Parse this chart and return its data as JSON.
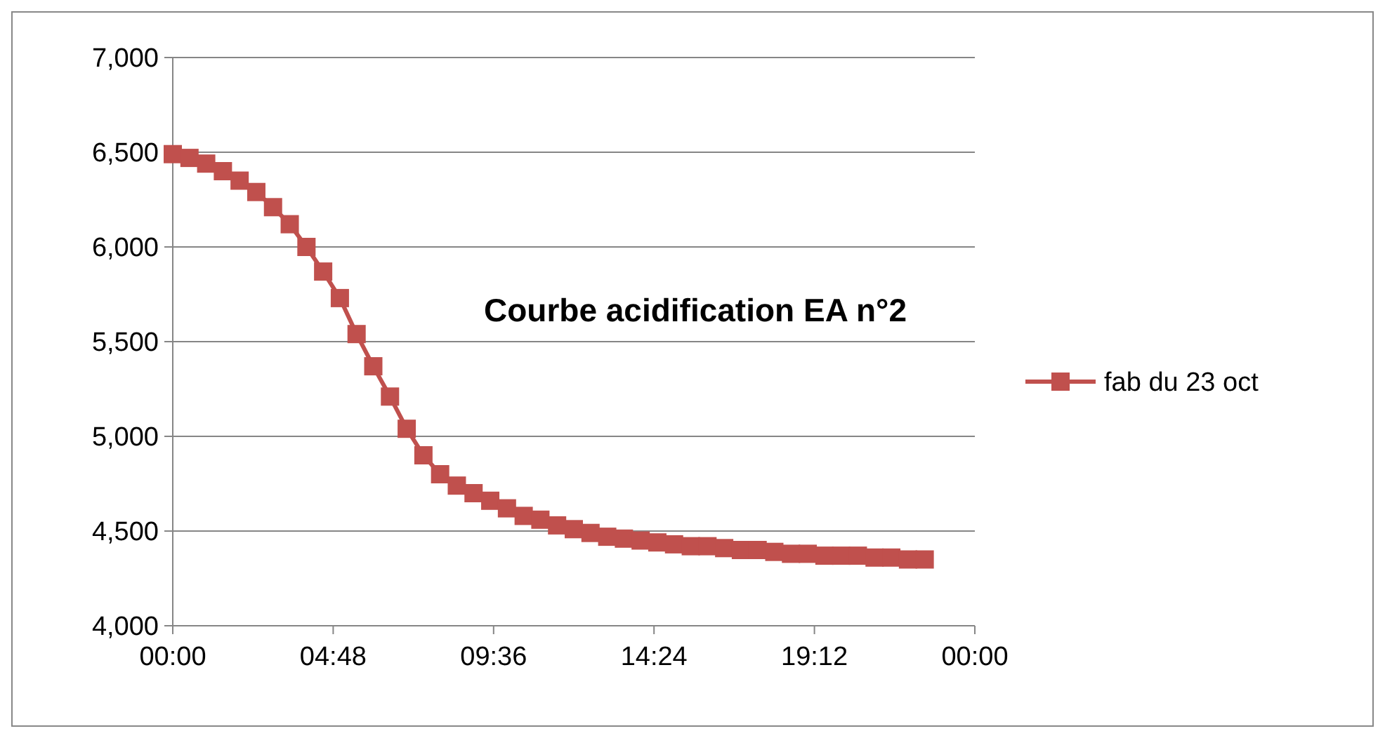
{
  "chart_data": {
    "type": "line",
    "title": "Courbe acidification EA n°2",
    "x": [
      0,
      0.5,
      1,
      1.5,
      2,
      2.5,
      3,
      3.5,
      4,
      4.5,
      5,
      5.5,
      6,
      6.5,
      7,
      7.5,
      8,
      8.5,
      9,
      9.5,
      10,
      10.5,
      11,
      11.5,
      12,
      12.5,
      13,
      13.5,
      14,
      14.5,
      15,
      15.5,
      16,
      16.5,
      17,
      17.5,
      18,
      18.5,
      19,
      19.5,
      20,
      20.5,
      21,
      21.5,
      22,
      22.5
    ],
    "series": [
      {
        "name": "fab du 23 oct",
        "color": "#c0504d",
        "values": [
          6490,
          6470,
          6440,
          6400,
          6350,
          6290,
          6210,
          6120,
          6000,
          5870,
          5730,
          5540,
          5370,
          5210,
          5040,
          4900,
          4800,
          4740,
          4700,
          4660,
          4620,
          4580,
          4560,
          4530,
          4510,
          4490,
          4470,
          4460,
          4450,
          4440,
          4430,
          4420,
          4420,
          4410,
          4400,
          4400,
          4390,
          4380,
          4380,
          4370,
          4370,
          4370,
          4360,
          4360,
          4350,
          4350
        ]
      }
    ],
    "xlim": [
      0,
      24
    ],
    "xticks": [
      {
        "value": 0,
        "label": "00:00"
      },
      {
        "value": 4.8,
        "label": "04:48"
      },
      {
        "value": 9.6,
        "label": "09:36"
      },
      {
        "value": 14.4,
        "label": "14:24"
      },
      {
        "value": 19.2,
        "label": "19:12"
      },
      {
        "value": 24,
        "label": "00:00"
      }
    ],
    "ylim": [
      4000,
      7000
    ],
    "yticks": [
      {
        "value": 4000,
        "label": "4,000"
      },
      {
        "value": 4500,
        "label": "4,500"
      },
      {
        "value": 5000,
        "label": "5,000"
      },
      {
        "value": 5500,
        "label": "5,500"
      },
      {
        "value": 6000,
        "label": "6,000"
      },
      {
        "value": 6500,
        "label": "6,500"
      },
      {
        "value": 7000,
        "label": "7,000"
      }
    ],
    "grid": "y",
    "legend": "right",
    "marker": "square",
    "line_style": "solid"
  }
}
